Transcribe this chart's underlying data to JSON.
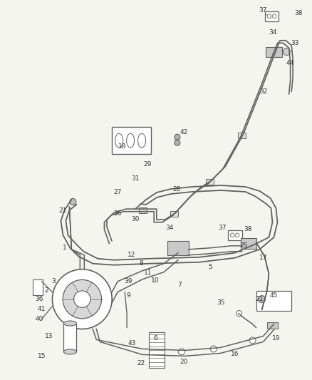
{
  "bg_color": "#f5f5f0",
  "line_color": "#606060",
  "text_color": "#333333",
  "fig_width": 4.38,
  "fig_height": 5.33,
  "dpi": 100
}
